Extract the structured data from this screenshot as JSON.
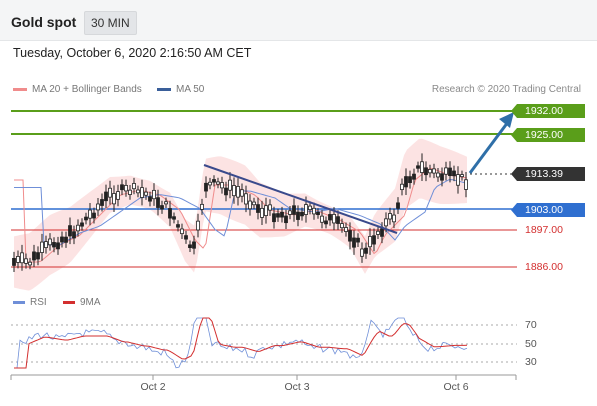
{
  "header": {
    "title": "Gold spot",
    "interval": "30 MIN",
    "datetime": "Tuesday, October 6, 2020 2:16:50 AM CET"
  },
  "legend": {
    "bollinger": {
      "label": "MA 20 + Bollinger Bands",
      "color": "#f08c8c"
    },
    "ma50": {
      "label": "MA 50",
      "color": "#3a5f9a"
    },
    "copyright": "Research © 2020 Trading Central"
  },
  "price_levels": [
    {
      "label": "1932.00",
      "kind": "resistance",
      "color": "#5a9e1a"
    },
    {
      "label": "1925.00",
      "kind": "resistance",
      "color": "#5a9e1a"
    },
    {
      "label": "1913.39",
      "kind": "last",
      "color": "#333333"
    },
    {
      "label": "1903.00",
      "kind": "pivot",
      "color": "#2f6fd0"
    },
    {
      "label": "1897.00",
      "kind": "support",
      "color": "#d32f2f"
    },
    {
      "label": "1886.00",
      "kind": "support",
      "color": "#d32f2f"
    }
  ],
  "rsi": {
    "legend_rsi": "RSI",
    "legend_ma": "9MA",
    "rsi_color": "#6f8fd8",
    "ma_color": "#d32f2f",
    "ticks": [
      "70",
      "50",
      "30"
    ]
  },
  "x_axis": {
    "labels": [
      "Oct 2",
      "Oct 3",
      "Oct 6"
    ]
  }
}
